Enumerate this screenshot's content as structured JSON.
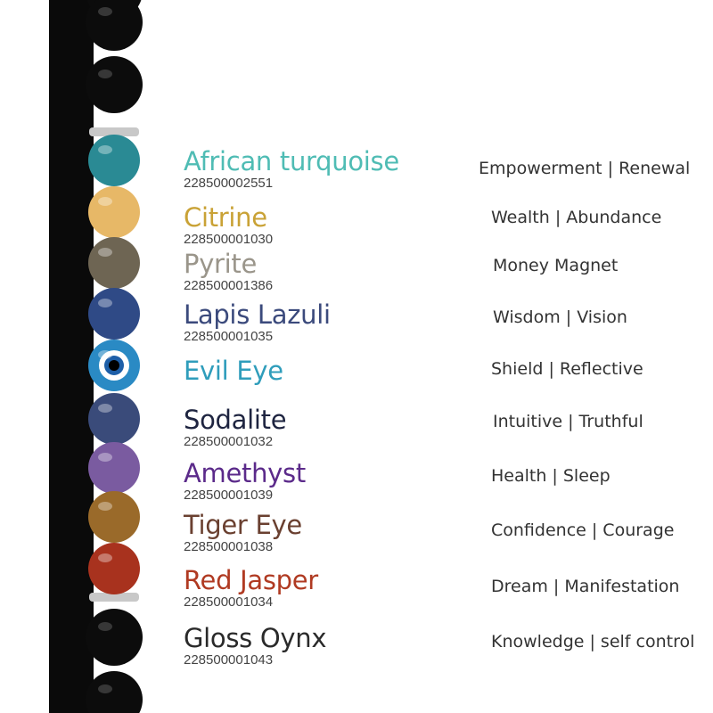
{
  "stones": [
    {
      "name": "African turquoise",
      "code": "228500002551",
      "color": "#4fbcb4",
      "benefit": "Empowerment | Renewal",
      "bead": "#2a8a94"
    },
    {
      "name": "Citrine",
      "code": "228500001030",
      "color": "#c9a236",
      "benefit": "Wealth | Abundance",
      "bead": "#e7b867"
    },
    {
      "name": "Pyrite",
      "code": "228500001386",
      "color": "#9a958a",
      "benefit": "Money Magnet",
      "bead": "#6e6553"
    },
    {
      "name": "Lapis Lazuli",
      "code": "228500001035",
      "color": "#3b4a7c",
      "benefit": "Wisdom | Vision",
      "bead": "#2f4a86"
    },
    {
      "name": "Evil Eye",
      "code": "",
      "color": "#2f9dbb",
      "benefit": "Shield | Reflective",
      "bead": "#2a8ac4"
    },
    {
      "name": "Sodalite",
      "code": "228500001032",
      "color": "#1e2440",
      "benefit": "Intuitive | Truthful",
      "bead": "#3a4b7a"
    },
    {
      "name": "Amethyst",
      "code": "228500001039",
      "color": "#5b2a8a",
      "benefit": "Health | Sleep",
      "bead": "#7a5ba0"
    },
    {
      "name": "Tiger Eye",
      "code": "228500001038",
      "color": "#6a4030",
      "benefit": "Confidence | Courage",
      "bead": "#9a6a2a"
    },
    {
      "name": "Red Jasper",
      "code": "228500001034",
      "color": "#b03a22",
      "benefit": "Dream | Manifestation",
      "bead": "#a8321e"
    },
    {
      "name": "Gloss Oynx",
      "code": "228500001043",
      "color": "#2a2a2a",
      "benefit": "Knowledge | self control",
      "bead": "#111111"
    }
  ]
}
